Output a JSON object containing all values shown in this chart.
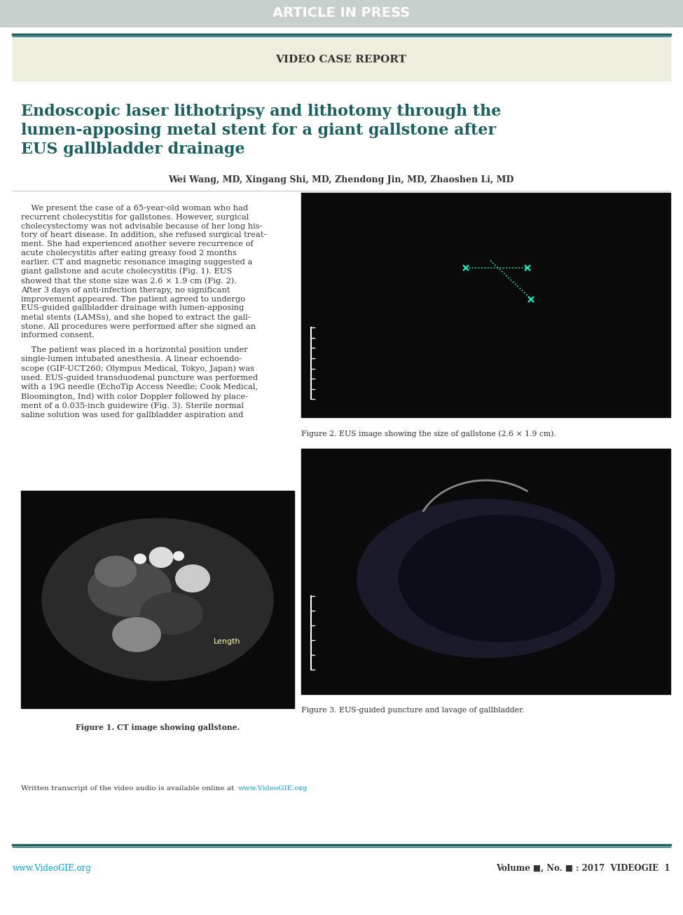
{
  "article_in_press_bg": "#c8d0ce",
  "article_in_press_text": "ARTICLE IN PRESS",
  "article_in_press_text_color": "#ffffff",
  "teal_line_color": "#1a6060",
  "header_bg": "#eeeedd",
  "header_text": "VIDEO CASE REPORT",
  "header_text_color": "#333333",
  "title_text": "Endoscopic laser lithotripsy and lithotomy through the\nlumen-apposing metal stent for a giant gallstone after\nEUS gallbladder drainage",
  "title_color": "#1a6060",
  "authors_text": "Wei Wang, MD, Xingang Shi, MD, Zhendong Jin, MD, Zhaoshen Li, MD",
  "authors_color": "#333333",
  "fig2_caption": "Figure 2. EUS image showing the size of gallstone (2.6 × 1.9 cm).",
  "fig3_caption": "Figure 3. EUS-guided puncture and lavage of gallbladder.",
  "fig1_caption": "Figure 1. CT image showing gallstone.",
  "footer_left": "www.VideoGIE.org",
  "footer_right": "Volume ■, No. ■ : 2017  VIDEOGIE  1",
  "footer_left_color": "#00aadd",
  "footer_right_color": "#333333",
  "page_bg": "#ffffff",
  "body_text_color": "#333333"
}
